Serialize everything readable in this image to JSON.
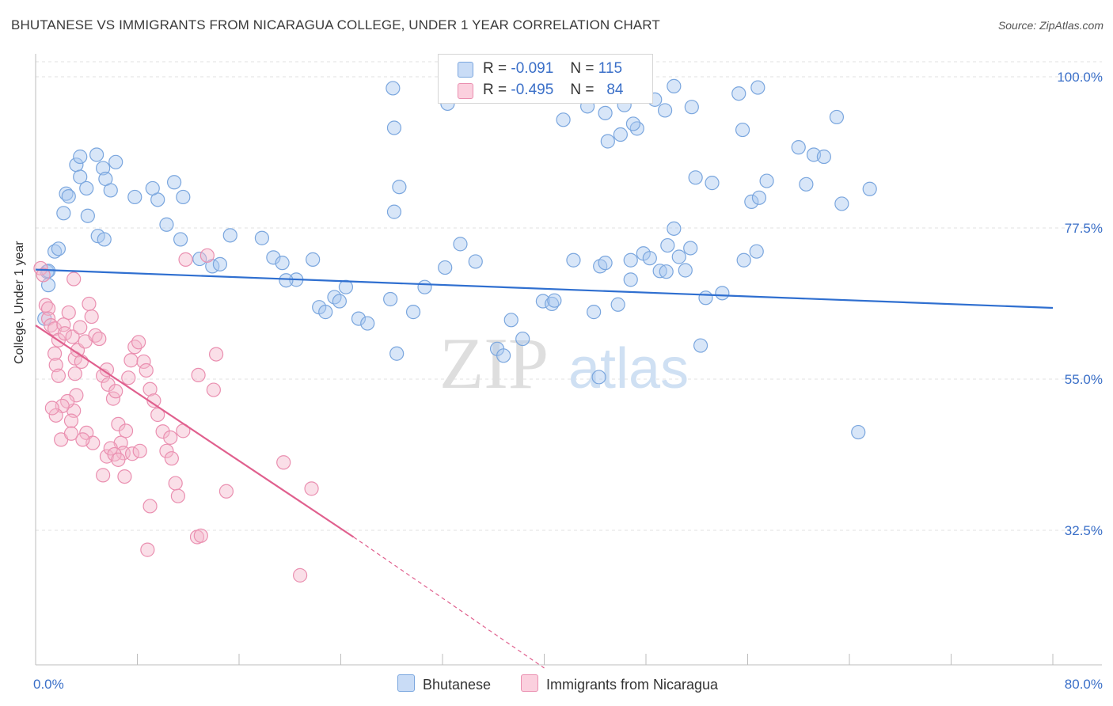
{
  "header": {
    "title": "BHUTANESE VS IMMIGRANTS FROM NICARAGUA COLLEGE, UNDER 1 YEAR CORRELATION CHART",
    "source": "Source: ZipAtlas.com"
  },
  "legend_stats": {
    "rows": [
      {
        "r_label": "R =",
        "r_value": "-0.091",
        "n_label": "N =",
        "n_value": "115",
        "color": "#a8c8f0"
      },
      {
        "r_label": "R =",
        "r_value": "-0.495",
        "n_label": "N =",
        "n_value": "84",
        "color": "#f5b8cc"
      }
    ]
  },
  "watermark": {
    "part1": "ZIP",
    "part2": "atlas"
  },
  "chart_data": {
    "type": "scatter",
    "title": "BHUTANESE VS IMMIGRANTS FROM NICARAGUA COLLEGE, UNDER 1 YEAR CORRELATION CHART",
    "xlabel": "",
    "ylabel": "College, Under 1 year",
    "xlim": [
      0,
      80
    ],
    "ylim": [
      12,
      105
    ],
    "x_tick_labels": [
      "0.0%",
      "80.0%"
    ],
    "y_ticks": [
      32.5,
      55.0,
      77.5,
      100.0
    ],
    "y_tick_labels": [
      "32.5%",
      "55.0%",
      "77.5%",
      "100.0%"
    ],
    "grid": true,
    "legend_position": "bottom-center",
    "series": [
      {
        "name": "Bhutanese",
        "color": "#a8c8f0",
        "edge": "#7aa6de",
        "trend": {
          "color": "#2f6fd0",
          "x": [
            0,
            80
          ],
          "y": [
            71.3,
            65.6
          ]
        },
        "points": [
          [
            0.9,
            71
          ],
          [
            1.0,
            71.1
          ],
          [
            1.0,
            69
          ],
          [
            0.7,
            64
          ],
          [
            1.5,
            74
          ],
          [
            1.8,
            74.4
          ],
          [
            2.2,
            79.7
          ],
          [
            2.4,
            82.6
          ],
          [
            2.6,
            82.2
          ],
          [
            3.2,
            86.9
          ],
          [
            3.5,
            85.1
          ],
          [
            3.5,
            88.1
          ],
          [
            4.0,
            83.4
          ],
          [
            4.1,
            79.3
          ],
          [
            4.8,
            88.4
          ],
          [
            5.3,
            86.4
          ],
          [
            5.5,
            84.8
          ],
          [
            5.9,
            83.1
          ],
          [
            4.9,
            76.3
          ],
          [
            5.4,
            75.8
          ],
          [
            6.3,
            87.3
          ],
          [
            7.8,
            82.1
          ],
          [
            9.6,
            81.7
          ],
          [
            9.2,
            83.4
          ],
          [
            10.9,
            84.3
          ],
          [
            11.6,
            82.1
          ],
          [
            10.3,
            78.0
          ],
          [
            11.4,
            75.8
          ],
          [
            12.9,
            72.9
          ],
          [
            13.9,
            71.8
          ],
          [
            14.5,
            72.1
          ],
          [
            15.3,
            76.4
          ],
          [
            17.8,
            76.0
          ],
          [
            18.7,
            73.1
          ],
          [
            19.4,
            72.3
          ],
          [
            20.5,
            69.8
          ],
          [
            19.7,
            69.7
          ],
          [
            21.8,
            72.8
          ],
          [
            23.5,
            67.2
          ],
          [
            24.4,
            68.7
          ],
          [
            22.3,
            65.7
          ],
          [
            22.8,
            65.0
          ],
          [
            23.9,
            66.6
          ],
          [
            25.4,
            64.0
          ],
          [
            26.1,
            63.3
          ],
          [
            27.9,
            66.9
          ],
          [
            28.4,
            58.8
          ],
          [
            29.7,
            65.0
          ],
          [
            30.6,
            68.7
          ],
          [
            32.2,
            71.6
          ],
          [
            33.4,
            75.1
          ],
          [
            34.6,
            72.5
          ],
          [
            36.3,
            59.5
          ],
          [
            37.4,
            63.8
          ],
          [
            36.8,
            58.5
          ],
          [
            38.3,
            61.0
          ],
          [
            39.9,
            66.6
          ],
          [
            40.6,
            66.2
          ],
          [
            40.8,
            66.7
          ],
          [
            42.3,
            72.7
          ],
          [
            43.9,
            65.0
          ],
          [
            44.3,
            55.3
          ],
          [
            44.4,
            71.8
          ],
          [
            44.8,
            72.3
          ],
          [
            45.8,
            66.1
          ],
          [
            46.8,
            72.7
          ],
          [
            47.8,
            73.7
          ],
          [
            48.3,
            73.0
          ],
          [
            49.1,
            71.1
          ],
          [
            49.7,
            74.9
          ],
          [
            50.2,
            77.4
          ],
          [
            50.6,
            73.2
          ],
          [
            51.1,
            71.2
          ],
          [
            51.5,
            74.5
          ],
          [
            52.3,
            60.0
          ],
          [
            52.7,
            67.1
          ],
          [
            54.0,
            67.8
          ],
          [
            53.2,
            84.2
          ],
          [
            51.9,
            85.0
          ],
          [
            56.3,
            81.4
          ],
          [
            56.7,
            74.0
          ],
          [
            56.9,
            82.0
          ],
          [
            60.0,
            89.5
          ],
          [
            61.2,
            88.4
          ],
          [
            63.4,
            81.1
          ],
          [
            65.6,
            83.3
          ],
          [
            28.1,
            98.3
          ],
          [
            32.4,
            96.0
          ],
          [
            41.5,
            93.6
          ],
          [
            43.4,
            95.6
          ],
          [
            44.8,
            94.6
          ],
          [
            46.3,
            95.8
          ],
          [
            47.3,
            92.3
          ],
          [
            48.7,
            96.6
          ],
          [
            50.2,
            98.6
          ],
          [
            55.6,
            92.1
          ],
          [
            45.6,
            99.7
          ],
          [
            45.0,
            90.4
          ],
          [
            46.0,
            91.4
          ],
          [
            47.0,
            93.0
          ],
          [
            49.5,
            95.0
          ],
          [
            51.6,
            95.5
          ],
          [
            55.3,
            97.5
          ],
          [
            56.8,
            98.4
          ],
          [
            57.5,
            84.5
          ],
          [
            60.6,
            84.0
          ],
          [
            62.0,
            88.1
          ],
          [
            63.0,
            94.0
          ],
          [
            28.2,
            92.4
          ],
          [
            46.8,
            69.8
          ],
          [
            49.6,
            71.0
          ],
          [
            55.7,
            72.7
          ],
          [
            64.7,
            47.1
          ],
          [
            28.2,
            79.9
          ],
          [
            28.6,
            83.6
          ]
        ]
      },
      {
        "name": "Immigrants from Nicaragua",
        "color": "#f5b8cc",
        "edge": "#ea8fb0",
        "trend": {
          "color": "#e0608e",
          "x": [
            0,
            25
          ],
          "y": [
            63,
            31.5
          ]
        },
        "trend_dashed": {
          "x": [
            25,
            40
          ],
          "y": [
            31.5,
            12
          ]
        },
        "points": [
          [
            0.4,
            71.5
          ],
          [
            0.6,
            70.5
          ],
          [
            0.8,
            66
          ],
          [
            1.0,
            65.5
          ],
          [
            1.0,
            64
          ],
          [
            1.2,
            63
          ],
          [
            1.5,
            62.5
          ],
          [
            1.5,
            58.8
          ],
          [
            1.6,
            57.1
          ],
          [
            1.8,
            55.5
          ],
          [
            1.8,
            60.8
          ],
          [
            2.2,
            63.1
          ],
          [
            2.3,
            61.8
          ],
          [
            2.6,
            64.9
          ],
          [
            2.9,
            61.3
          ],
          [
            3.1,
            58.1
          ],
          [
            3.1,
            55.8
          ],
          [
            3.3,
            59.3
          ],
          [
            3.5,
            62.7
          ],
          [
            3.6,
            57.6
          ],
          [
            3.9,
            60.6
          ],
          [
            4.2,
            66.2
          ],
          [
            4.4,
            64.3
          ],
          [
            4.7,
            61.5
          ],
          [
            5.0,
            61.0
          ],
          [
            5.3,
            55.5
          ],
          [
            5.6,
            56.4
          ],
          [
            5.7,
            54.2
          ],
          [
            6.1,
            52.1
          ],
          [
            6.3,
            53.2
          ],
          [
            6.5,
            48.3
          ],
          [
            6.7,
            45.5
          ],
          [
            6.9,
            44.0
          ],
          [
            7.1,
            47.3
          ],
          [
            7.3,
            55.2
          ],
          [
            7.5,
            57.8
          ],
          [
            7.8,
            59.8
          ],
          [
            8.1,
            60.5
          ],
          [
            8.5,
            57.6
          ],
          [
            8.7,
            56.3
          ],
          [
            9.0,
            53.5
          ],
          [
            9.3,
            51.8
          ],
          [
            9.6,
            49.7
          ],
          [
            10.0,
            47.2
          ],
          [
            10.3,
            44.3
          ],
          [
            10.6,
            46.3
          ],
          [
            10.7,
            43.2
          ],
          [
            11.0,
            39.5
          ],
          [
            11.2,
            37.6
          ],
          [
            12.7,
            31.5
          ],
          [
            13.0,
            31.7
          ],
          [
            5.3,
            40.7
          ],
          [
            5.6,
            43.5
          ],
          [
            5.9,
            44.7
          ],
          [
            6.2,
            43.8
          ],
          [
            6.5,
            43.0
          ],
          [
            7.0,
            40.5
          ],
          [
            7.6,
            43.9
          ],
          [
            8.2,
            44.3
          ],
          [
            9.0,
            36.1
          ],
          [
            8.8,
            29.6
          ],
          [
            4.0,
            47.0
          ],
          [
            4.5,
            45.5
          ],
          [
            3.7,
            46.0
          ],
          [
            3.0,
            50.3
          ],
          [
            3.2,
            52.6
          ],
          [
            2.8,
            48.8
          ],
          [
            2.5,
            51.7
          ],
          [
            2.1,
            51.0
          ],
          [
            1.6,
            49.6
          ],
          [
            1.3,
            50.7
          ],
          [
            2.0,
            46.0
          ],
          [
            2.8,
            46.9
          ],
          [
            15.0,
            38.3
          ],
          [
            19.5,
            42.6
          ],
          [
            21.7,
            38.7
          ],
          [
            20.8,
            25.8
          ],
          [
            11.6,
            47.3
          ],
          [
            12.8,
            55.6
          ],
          [
            14.0,
            53.4
          ],
          [
            11.8,
            72.8
          ],
          [
            13.5,
            73.4
          ],
          [
            14.2,
            58.7
          ],
          [
            3.0,
            69.9
          ]
        ]
      }
    ]
  },
  "bottom_legend": {
    "items": [
      {
        "label": "Bhutanese",
        "color": "#a8c8f0"
      },
      {
        "label": "Immigrants from Nicaragua",
        "color": "#f5b8cc"
      }
    ]
  }
}
